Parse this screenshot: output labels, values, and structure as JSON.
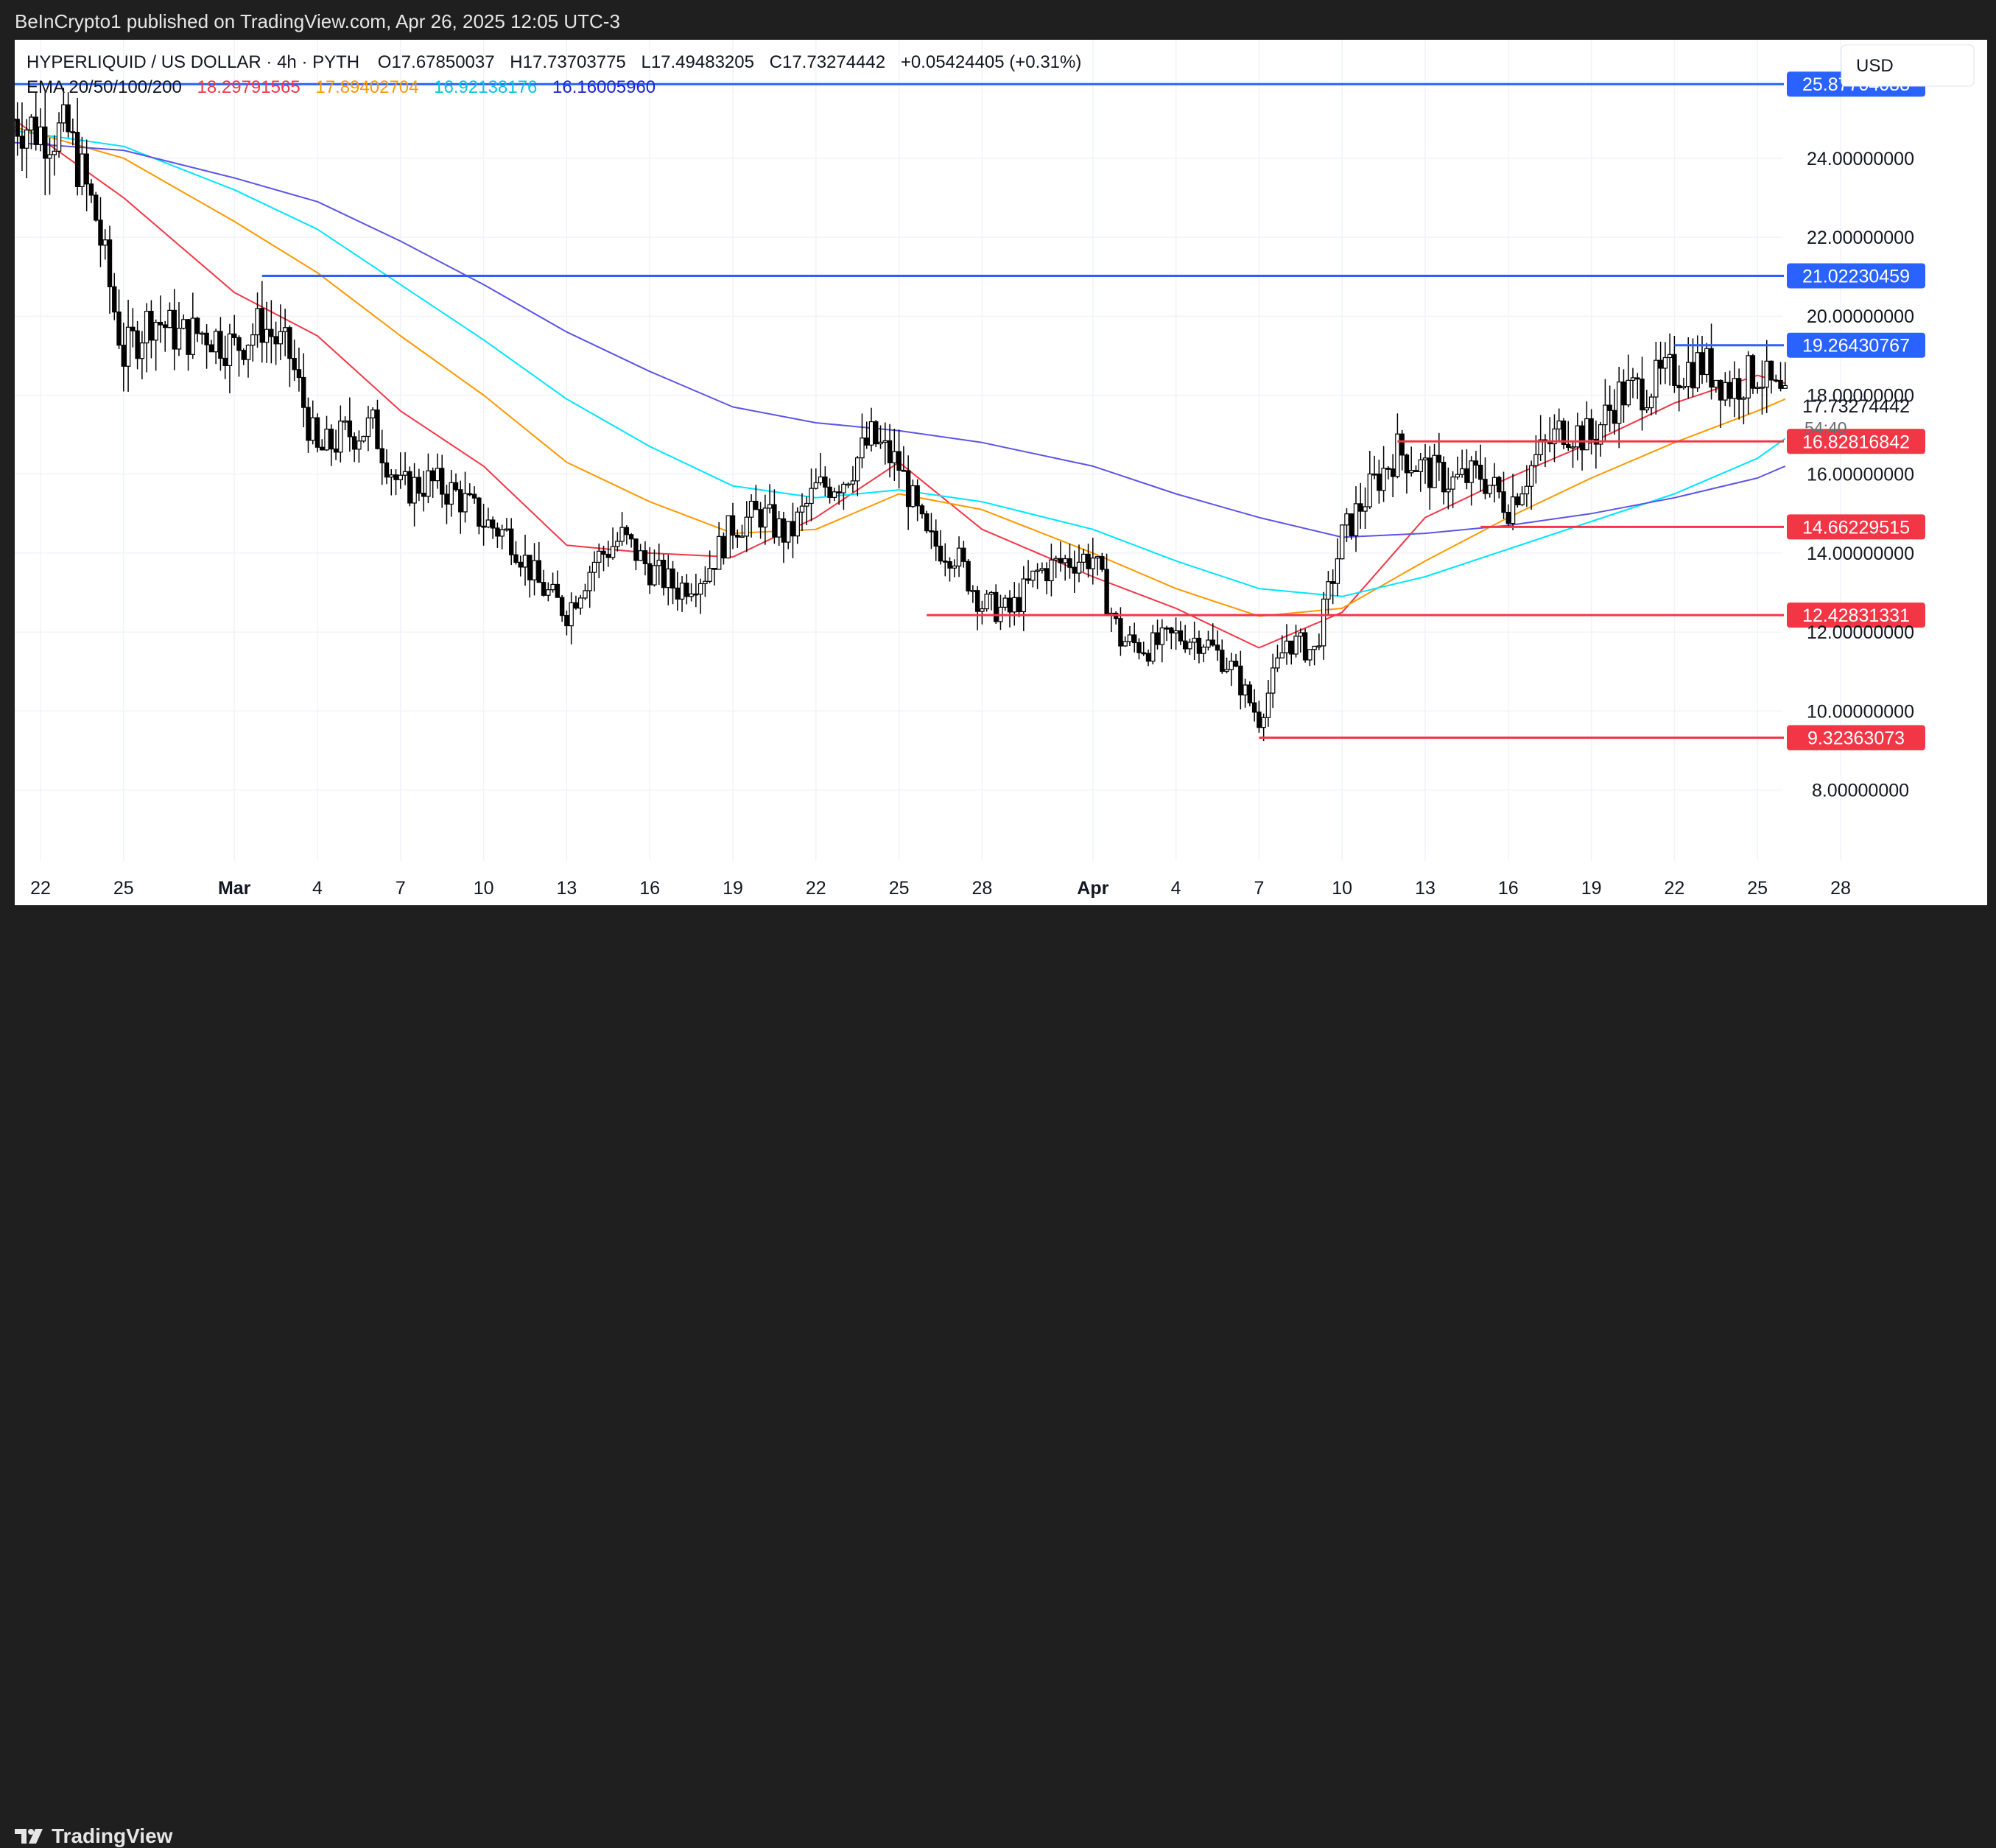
{
  "header": {
    "publisher": "BeInCrypto1 published on TradingView.com, Apr 26, 2025 12:05 UTC-3"
  },
  "legend": {
    "symbol": "HYPERLIQUID / US DOLLAR · 4h · PYTH",
    "ohlc": {
      "o_label": "O",
      "o": "17.67850037",
      "h_label": "H",
      "h": "17.73703775",
      "l_label": "L",
      "l": "17.49483205",
      "c_label": "C",
      "c": "17.73274442",
      "change": "+0.05424405 (+0.31%)"
    },
    "ema_label": "EMA 20/50/100/200",
    "ema_values": [
      {
        "value": "18.29791565",
        "color": "#f23645"
      },
      {
        "value": "17.89402704",
        "color": "#ff9800"
      },
      {
        "value": "16.92138176",
        "color": "#00e5ff"
      },
      {
        "value": "16.16005960",
        "color": "#1e24d9"
      }
    ]
  },
  "currency_button": "USD",
  "footer": {
    "brand": "TradingView"
  },
  "colors": {
    "resistance": "#2962ff",
    "support": "#f23645",
    "ema20": "#f23645",
    "ema50": "#ff9800",
    "ema100": "#00e5ff",
    "ema200": "#5b55e6",
    "candle": "#000000",
    "grid": "#f0f3fa"
  },
  "chart_data": {
    "type": "candlestick",
    "symbol": "HYPERLIQUID / US DOLLAR",
    "interval": "4h",
    "x_ticks": [
      "22",
      "25",
      "Mar",
      "4",
      "7",
      "10",
      "13",
      "16",
      "19",
      "22",
      "25",
      "28",
      "Apr",
      "4",
      "7",
      "10",
      "13",
      "16",
      "19",
      "22",
      "25",
      "28"
    ],
    "x_tick_dates": [
      "2025-02-22",
      "2025-02-25",
      "2025-03-01",
      "2025-03-04",
      "2025-03-07",
      "2025-03-10",
      "2025-03-13",
      "2025-03-16",
      "2025-03-19",
      "2025-03-22",
      "2025-03-25",
      "2025-03-28",
      "2025-04-01",
      "2025-04-04",
      "2025-04-07",
      "2025-04-10",
      "2025-04-13",
      "2025-04-16",
      "2025-04-19",
      "2025-04-22",
      "2025-04-25",
      "2025-04-28"
    ],
    "y_ticks": [
      "8.00000000",
      "10.00000000",
      "12.00000000",
      "14.00000000",
      "16.00000000",
      "18.00000000",
      "20.00000000",
      "22.00000000",
      "24.00000000"
    ],
    "y_tick_values": [
      8,
      10,
      12,
      14,
      16,
      18,
      20,
      22,
      24
    ],
    "ylim": [
      6.2,
      27.0
    ],
    "last_price": "17.73274442",
    "countdown": "54:40",
    "resistance_levels": [
      {
        "label": "25.87704088",
        "value": 25.877,
        "from": "2025-02-21"
      },
      {
        "label": "21.02230459",
        "value": 21.022,
        "from": "2025-03-02"
      },
      {
        "label": "19.26430767",
        "value": 19.264,
        "from": "2025-04-22"
      }
    ],
    "support_levels": [
      {
        "label": "16.82816842",
        "value": 16.828,
        "from": "2025-04-12"
      },
      {
        "label": "14.66229515",
        "value": 14.662,
        "from": "2025-04-15"
      },
      {
        "label": "12.42831331",
        "value": 12.428,
        "from": "2025-03-26"
      },
      {
        "label": "9.32363073",
        "value": 9.324,
        "from": "2025-04-07"
      }
    ],
    "price_path": [
      [
        "2025-02-21",
        25.0
      ],
      [
        "2025-02-22",
        24.7
      ],
      [
        "2025-02-23",
        24.6
      ],
      [
        "2025-02-24",
        22.5
      ],
      [
        "2025-02-25",
        19.0
      ],
      [
        "2025-02-26",
        20.0
      ],
      [
        "2025-02-27",
        19.5
      ],
      [
        "2025-02-28",
        19.6
      ],
      [
        "2025-03-01",
        19.2
      ],
      [
        "2025-03-02",
        19.8
      ],
      [
        "2025-03-03",
        19.0
      ],
      [
        "2025-03-04",
        16.5
      ],
      [
        "2025-03-05",
        17.0
      ],
      [
        "2025-03-06",
        17.2
      ],
      [
        "2025-03-07",
        15.6
      ],
      [
        "2025-03-08",
        15.8
      ],
      [
        "2025-03-09",
        15.5
      ],
      [
        "2025-03-10",
        14.8
      ],
      [
        "2025-03-11",
        14.4
      ],
      [
        "2025-03-12",
        13.2
      ],
      [
        "2025-03-13",
        12.5
      ],
      [
        "2025-03-14",
        13.8
      ],
      [
        "2025-03-15",
        14.4
      ],
      [
        "2025-03-16",
        13.6
      ],
      [
        "2025-03-17",
        13.1
      ],
      [
        "2025-03-18",
        13.5
      ],
      [
        "2025-03-19",
        14.7
      ],
      [
        "2025-03-20",
        15.0
      ],
      [
        "2025-03-21",
        14.4
      ],
      [
        "2025-03-22",
        15.6
      ],
      [
        "2025-03-23",
        15.9
      ],
      [
        "2025-03-24",
        16.9
      ],
      [
        "2025-03-25",
        16.2
      ],
      [
        "2025-03-26",
        14.3
      ],
      [
        "2025-03-27",
        14.0
      ],
      [
        "2025-03-28",
        12.7
      ],
      [
        "2025-03-29",
        12.5
      ],
      [
        "2025-03-30",
        13.5
      ],
      [
        "2025-03-31",
        13.8
      ],
      [
        "2025-04-01",
        13.9
      ],
      [
        "2025-04-02",
        11.8
      ],
      [
        "2025-04-03",
        11.6
      ],
      [
        "2025-04-04",
        11.9
      ],
      [
        "2025-04-05",
        11.8
      ],
      [
        "2025-04-06",
        11.1
      ],
      [
        "2025-04-07",
        9.8
      ],
      [
        "2025-04-08",
        11.8
      ],
      [
        "2025-04-09",
        11.5
      ],
      [
        "2025-04-10",
        14.4
      ],
      [
        "2025-04-11",
        15.6
      ],
      [
        "2025-04-12",
        16.6
      ],
      [
        "2025-04-13",
        16.1
      ],
      [
        "2025-04-14",
        15.8
      ],
      [
        "2025-04-15",
        16.0
      ],
      [
        "2025-04-16",
        15.2
      ],
      [
        "2025-04-17",
        16.4
      ],
      [
        "2025-04-18",
        17.2
      ],
      [
        "2025-04-19",
        16.9
      ],
      [
        "2025-04-20",
        18.0
      ],
      [
        "2025-04-21",
        18.2
      ],
      [
        "2025-04-22",
        18.6
      ],
      [
        "2025-04-23",
        18.8
      ],
      [
        "2025-04-24",
        18.2
      ],
      [
        "2025-04-25",
        18.6
      ],
      [
        "2025-04-26",
        17.73
      ]
    ],
    "ema_series": [
      {
        "name": "EMA 20",
        "path": [
          [
            "2025-02-21",
            25.0
          ],
          [
            "2025-02-25",
            23.0
          ],
          [
            "2025-03-01",
            20.6
          ],
          [
            "2025-03-04",
            19.5
          ],
          [
            "2025-03-07",
            17.6
          ],
          [
            "2025-03-10",
            16.2
          ],
          [
            "2025-03-13",
            14.2
          ],
          [
            "2025-03-16",
            14.0
          ],
          [
            "2025-03-19",
            13.9
          ],
          [
            "2025-03-22",
            14.9
          ],
          [
            "2025-03-25",
            16.3
          ],
          [
            "2025-03-28",
            14.6
          ],
          [
            "2025-04-01",
            13.4
          ],
          [
            "2025-04-04",
            12.6
          ],
          [
            "2025-04-07",
            11.6
          ],
          [
            "2025-04-10",
            12.5
          ],
          [
            "2025-04-13",
            14.9
          ],
          [
            "2025-04-16",
            15.9
          ],
          [
            "2025-04-19",
            16.8
          ],
          [
            "2025-04-22",
            17.8
          ],
          [
            "2025-04-25",
            18.5
          ],
          [
            "2025-04-26",
            18.3
          ]
        ]
      },
      {
        "name": "EMA 50",
        "path": [
          [
            "2025-02-21",
            24.8
          ],
          [
            "2025-02-25",
            24.0
          ],
          [
            "2025-03-01",
            22.4
          ],
          [
            "2025-03-04",
            21.1
          ],
          [
            "2025-03-07",
            19.5
          ],
          [
            "2025-03-10",
            18.0
          ],
          [
            "2025-03-13",
            16.3
          ],
          [
            "2025-03-16",
            15.3
          ],
          [
            "2025-03-19",
            14.5
          ],
          [
            "2025-03-22",
            14.6
          ],
          [
            "2025-03-25",
            15.5
          ],
          [
            "2025-03-28",
            15.1
          ],
          [
            "2025-04-01",
            14.0
          ],
          [
            "2025-04-04",
            13.1
          ],
          [
            "2025-04-07",
            12.4
          ],
          [
            "2025-04-10",
            12.6
          ],
          [
            "2025-04-13",
            13.8
          ],
          [
            "2025-04-16",
            14.9
          ],
          [
            "2025-04-19",
            15.9
          ],
          [
            "2025-04-22",
            16.8
          ],
          [
            "2025-04-25",
            17.6
          ],
          [
            "2025-04-26",
            17.9
          ]
        ]
      },
      {
        "name": "EMA 100",
        "path": [
          [
            "2025-02-21",
            24.7
          ],
          [
            "2025-02-25",
            24.3
          ],
          [
            "2025-03-01",
            23.2
          ],
          [
            "2025-03-04",
            22.2
          ],
          [
            "2025-03-07",
            20.8
          ],
          [
            "2025-03-10",
            19.4
          ],
          [
            "2025-03-13",
            17.9
          ],
          [
            "2025-03-16",
            16.7
          ],
          [
            "2025-03-19",
            15.7
          ],
          [
            "2025-03-22",
            15.4
          ],
          [
            "2025-03-25",
            15.6
          ],
          [
            "2025-03-28",
            15.3
          ],
          [
            "2025-04-01",
            14.6
          ],
          [
            "2025-04-04",
            13.8
          ],
          [
            "2025-04-07",
            13.1
          ],
          [
            "2025-04-10",
            12.9
          ],
          [
            "2025-04-13",
            13.4
          ],
          [
            "2025-04-16",
            14.1
          ],
          [
            "2025-04-19",
            14.8
          ],
          [
            "2025-04-22",
            15.5
          ],
          [
            "2025-04-25",
            16.4
          ],
          [
            "2025-04-26",
            16.9
          ]
        ]
      },
      {
        "name": "EMA 200",
        "path": [
          [
            "2025-02-21",
            24.4
          ],
          [
            "2025-02-25",
            24.2
          ],
          [
            "2025-03-01",
            23.5
          ],
          [
            "2025-03-04",
            22.9
          ],
          [
            "2025-03-07",
            21.9
          ],
          [
            "2025-03-10",
            20.8
          ],
          [
            "2025-03-13",
            19.6
          ],
          [
            "2025-03-16",
            18.6
          ],
          [
            "2025-03-19",
            17.7
          ],
          [
            "2025-03-22",
            17.3
          ],
          [
            "2025-03-25",
            17.1
          ],
          [
            "2025-03-28",
            16.8
          ],
          [
            "2025-04-01",
            16.2
          ],
          [
            "2025-04-04",
            15.5
          ],
          [
            "2025-04-07",
            14.9
          ],
          [
            "2025-04-10",
            14.4
          ],
          [
            "2025-04-13",
            14.5
          ],
          [
            "2025-04-16",
            14.7
          ],
          [
            "2025-04-19",
            15.0
          ],
          [
            "2025-04-22",
            15.4
          ],
          [
            "2025-04-25",
            15.9
          ],
          [
            "2025-04-26",
            16.2
          ]
        ]
      }
    ]
  }
}
